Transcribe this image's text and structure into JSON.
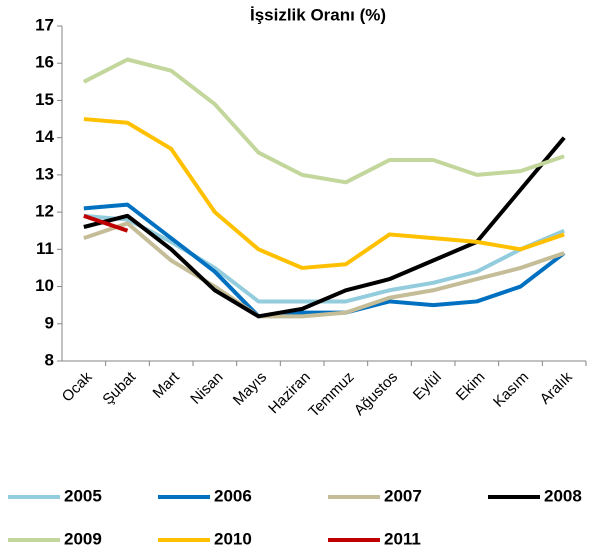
{
  "chart_data": {
    "type": "line",
    "title": "İşsizlik Oranı (%)",
    "categories": [
      "Ocak",
      "Şubat",
      "Mart",
      "Nisan",
      "Mayıs",
      "Haziran",
      "Temmuz",
      "Ağustos",
      "Eylül",
      "Ekim",
      "Kasım",
      "Aralık"
    ],
    "series": [
      {
        "name": "2005",
        "color": "#93cddd",
        "values": [
          11.9,
          11.8,
          11.2,
          10.5,
          9.6,
          9.6,
          9.6,
          9.9,
          10.1,
          10.4,
          11.0,
          11.5
        ]
      },
      {
        "name": "2006",
        "color": "#0070c0",
        "values": [
          12.1,
          12.2,
          11.3,
          10.4,
          9.2,
          9.3,
          9.3,
          9.6,
          9.5,
          9.6,
          10.0,
          10.9
        ]
      },
      {
        "name": "2007",
        "color": "#c4bd97",
        "values": [
          11.3,
          11.7,
          10.7,
          10.0,
          9.2,
          9.2,
          9.3,
          9.7,
          9.9,
          10.2,
          10.5,
          10.9
        ]
      },
      {
        "name": "2008",
        "color": "#000000",
        "values": [
          11.6,
          11.9,
          11.0,
          9.9,
          9.2,
          9.4,
          9.9,
          10.2,
          10.7,
          11.2,
          12.6,
          14.0
        ]
      },
      {
        "name": "2009",
        "color": "#c3d69b",
        "values": [
          15.5,
          16.1,
          15.8,
          14.9,
          13.6,
          13.0,
          12.8,
          13.4,
          13.4,
          13.0,
          13.1,
          13.5
        ]
      },
      {
        "name": "2010",
        "color": "#ffc000",
        "values": [
          14.5,
          14.4,
          13.7,
          12.0,
          11.0,
          10.5,
          10.6,
          11.4,
          11.3,
          11.2,
          11.0,
          11.4
        ]
      },
      {
        "name": "2011",
        "color": "#c00000",
        "values": [
          11.9,
          11.5,
          null,
          null,
          null,
          null,
          null,
          null,
          null,
          null,
          null,
          null
        ]
      }
    ],
    "ylim": [
      8,
      17
    ],
    "yticks": [
      8,
      9,
      10,
      11,
      12,
      13,
      14,
      15,
      16,
      17
    ],
    "grid": false,
    "legend": "bottom"
  }
}
